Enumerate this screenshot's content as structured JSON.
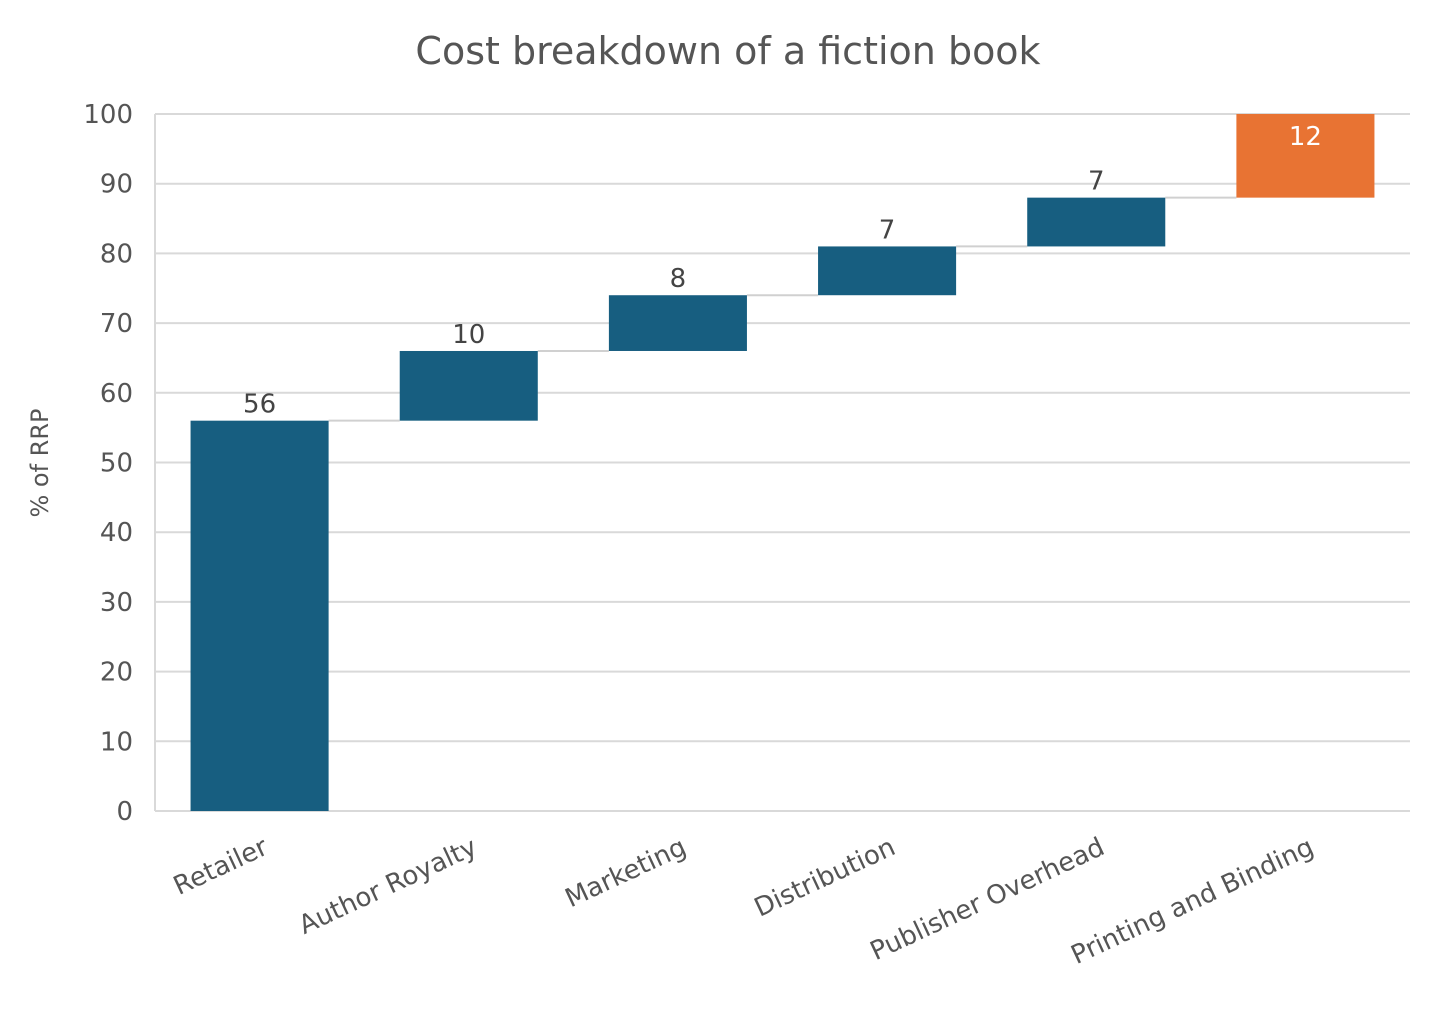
{
  "chart_data": {
    "type": "bar",
    "subtype": "waterfall",
    "title": "Cost breakdown of a fiction book",
    "xlabel": "",
    "ylabel": "% of RRP",
    "ylim": [
      0,
      100
    ],
    "yticks": [
      0,
      10,
      20,
      30,
      40,
      50,
      60,
      70,
      80,
      90,
      100
    ],
    "grid": true,
    "categories": [
      "Retailer",
      "Author Royalty",
      "Marketing",
      "Distribution",
      "Publisher Overhead",
      "Printing and Binding"
    ],
    "values": [
      56,
      10,
      8,
      7,
      7,
      12
    ],
    "data_labels": [
      "56",
      "10",
      "8",
      "7",
      "7",
      "12"
    ],
    "colors": [
      "#175e80",
      "#175e80",
      "#175e80",
      "#175e80",
      "#175e80",
      "#e87333"
    ],
    "highlight_color": "#e87333",
    "bar_color": "#175e80"
  }
}
